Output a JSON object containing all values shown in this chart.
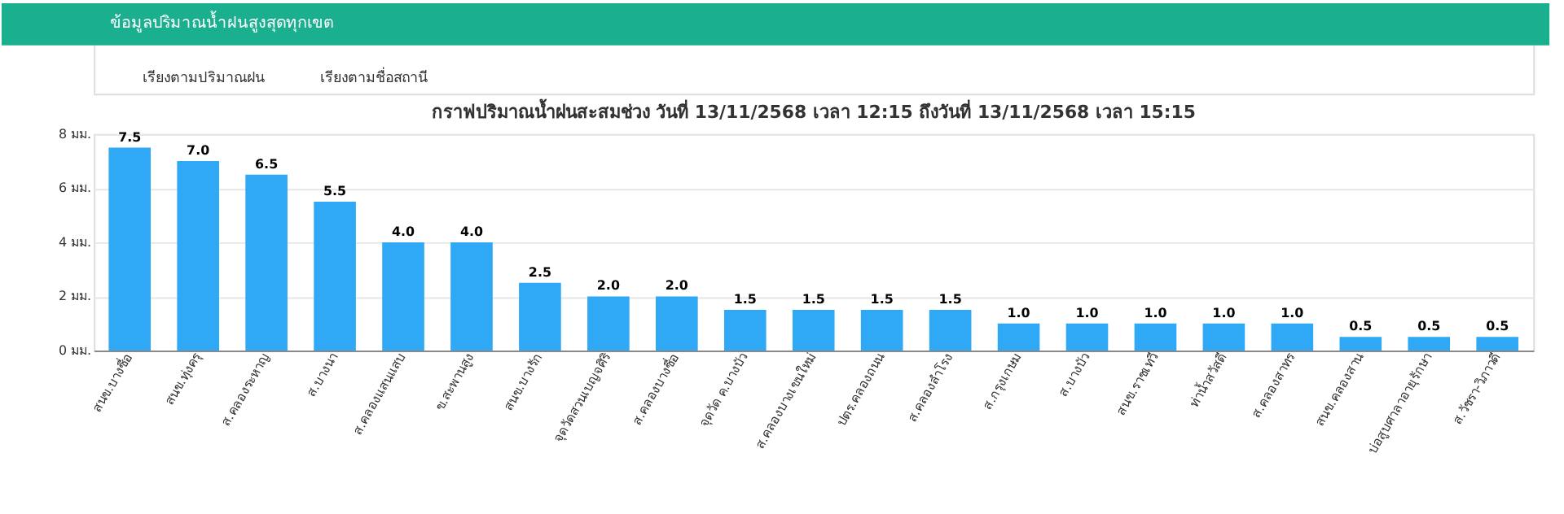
{
  "chart_data": {
    "type": "bar",
    "title": "กราฟปริมาณน้ำฝนสะสมช่วง วันที่ 13/11/2568 เวลา 12:15 ถึงวันที่ 13/11/2568 เวลา 15:15",
    "annotations": [
      "ข้อมูลปริมาณน้ำฝนสูงสุดทุกเขต",
      "เรียงตามปริมาณฝน",
      "เรียงตามชื่อสถานี"
    ],
    "categories": [
      "สนข.บางซื่อ",
      "สนข.ทุ่งครุ",
      "ส.คลองระหาญ",
      "ส.บางนา",
      "ส.คลองแสนแสบ",
      "ข.สะพานสูง",
      "สนข.บางรัก",
      "จุดวัดสวนเบญจศิริ",
      "ส.คลองบางซื่อ",
      "จุดวัด ค.บางบัว",
      "ส.คลองบางเขนใหม่",
      "ปตร.คลองถนน",
      "ส.คลองลำโรง",
      "ส.กรุงเกษม",
      "ส.บางบัว",
      "สนข.ราชเทวี",
      "ท่าน้ำสวัสดี",
      "ส.คลองสาทร",
      "สนข.คลองสาน",
      "บ่อสูบศาลาอายุรักษา",
      "ส.วัชรา-วิภาวดี"
    ],
    "values": [
      7.5,
      7.0,
      6.5,
      5.5,
      4.0,
      4.0,
      2.5,
      2.0,
      2.0,
      1.5,
      1.5,
      1.5,
      1.5,
      1.0,
      1.0,
      1.0,
      1.0,
      1.0,
      0.5,
      0.5,
      0.5
    ],
    "value_labels": [
      "7.5",
      "7.0",
      "6.5",
      "5.5",
      "4.0",
      "4.0",
      "2.5",
      "2.0",
      "2.0",
      "1.5",
      "1.5",
      "1.5",
      "1.5",
      "1.0",
      "1.0",
      "1.0",
      "1.0",
      "1.0",
      "0.5",
      "0.5",
      "0.5"
    ],
    "color": "#2fa9f6",
    "ylim": [
      0,
      8
    ],
    "yticks": [
      {
        "value": 0,
        "label": "0 มม."
      },
      {
        "value": 2,
        "label": "2 มม."
      },
      {
        "value": 4,
        "label": "4 มม."
      },
      {
        "value": 6,
        "label": "6 มม."
      },
      {
        "value": 8,
        "label": "8 มม."
      }
    ],
    "grid": "y"
  }
}
